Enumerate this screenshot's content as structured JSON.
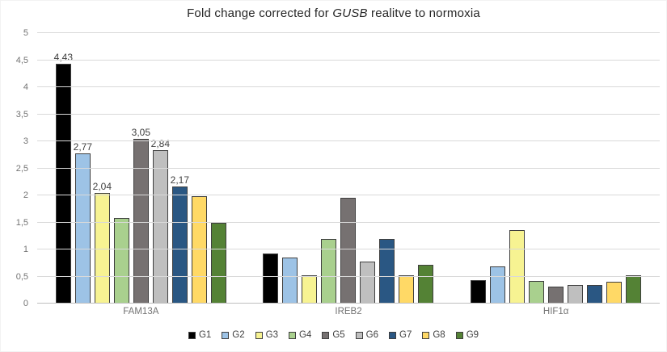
{
  "title": {
    "prefix": "Fold change corrected for ",
    "gene": "GUSB",
    "suffix": " realitve to normoxia"
  },
  "chart_data": {
    "type": "bar",
    "title": "Fold change corrected for GUSB realitve to normoxia",
    "categories": [
      "FAM13A",
      "IREB2",
      "HIF1α"
    ],
    "series": [
      {
        "name": "G1",
        "color": "#000000",
        "values": [
          4.43,
          0.93,
          0.43
        ],
        "labels": [
          "4,43",
          "",
          ""
        ]
      },
      {
        "name": "G2",
        "color": "#9dc3e6",
        "values": [
          2.77,
          0.85,
          0.69
        ],
        "labels": [
          "2,77",
          "",
          ""
        ]
      },
      {
        "name": "G3",
        "color": "#f7f392",
        "values": [
          2.04,
          0.53,
          1.36
        ],
        "labels": [
          "2,04",
          "",
          ""
        ]
      },
      {
        "name": "G4",
        "color": "#a9d08e",
        "values": [
          1.58,
          1.2,
          0.42
        ],
        "labels": [
          "",
          "",
          ""
        ]
      },
      {
        "name": "G5",
        "color": "#767171",
        "values": [
          3.05,
          1.95,
          0.31
        ],
        "labels": [
          "3,05",
          "",
          ""
        ]
      },
      {
        "name": "G6",
        "color": "#bfbfbf",
        "values": [
          2.84,
          0.77,
          0.35
        ],
        "labels": [
          "2,84",
          "",
          ""
        ]
      },
      {
        "name": "G7",
        "color": "#2a5783",
        "values": [
          2.17,
          1.2,
          0.35
        ],
        "labels": [
          "2,17",
          "",
          ""
        ]
      },
      {
        "name": "G8",
        "color": "#ffd966",
        "values": [
          1.98,
          0.53,
          0.41
        ],
        "labels": [
          "",
          "",
          ""
        ]
      },
      {
        "name": "G9",
        "color": "#548235",
        "values": [
          1.5,
          0.71,
          0.52
        ],
        "labels": [
          "",
          "",
          ""
        ]
      }
    ],
    "ylim": [
      0,
      5
    ],
    "ytick_step": 0.5,
    "ytick_labels": [
      "0",
      "0,5",
      "1",
      "1,5",
      "2",
      "2,5",
      "3",
      "3,5",
      "4",
      "4,5",
      "5"
    ],
    "grid": true,
    "legend_position": "bottom",
    "colors": {
      "gridline": "#d9d9d9",
      "axis_line": "#bfbfbf",
      "tick_text": "#737373",
      "title_text": "#262626",
      "data_label_text": "#404040"
    }
  }
}
